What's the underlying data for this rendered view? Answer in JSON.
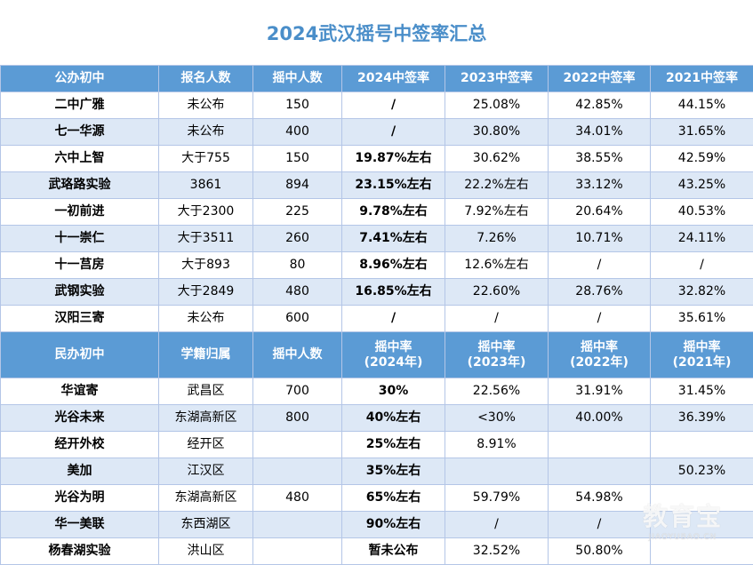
{
  "title": "2024武汉摇号中签率汇总",
  "colors": {
    "header_bg": "#5b9bd5",
    "title": "#4a8ec9",
    "stripe": "#dde8f6"
  },
  "public_header": [
    "公办初中",
    "报名人数",
    "摇中人数",
    "2024中签率",
    "2023中签率",
    "2022中签率",
    "2021中签率"
  ],
  "public_rows": [
    [
      "二中广雅",
      "未公布",
      "150",
      "/",
      "25.08%",
      "42.85%",
      "44.15%"
    ],
    [
      "七一华源",
      "未公布",
      "400",
      "/",
      "30.80%",
      "34.01%",
      "31.65%"
    ],
    [
      "六中上智",
      "大于755",
      "150",
      "19.87%左右",
      "30.62%",
      "38.55%",
      "42.59%"
    ],
    [
      "武珞路实验",
      "3861",
      "894",
      "23.15%左右",
      "22.2%左右",
      "33.12%",
      "43.25%"
    ],
    [
      "一初前进",
      "大于2300",
      "225",
      "9.78%左右",
      "7.92%左右",
      "20.64%",
      "40.53%"
    ],
    [
      "十一崇仁",
      "大于3511",
      "260",
      "7.41%左右",
      "7.26%",
      "10.71%",
      "24.11%"
    ],
    [
      "十一莒房",
      "大于893",
      "80",
      "8.96%左右",
      "12.6%左右",
      "/",
      "/"
    ],
    [
      "武钢实验",
      "大于2849",
      "480",
      "16.85%左右",
      "22.60%",
      "28.76%",
      "32.82%"
    ],
    [
      "汉阳三寄",
      "未公布",
      "600",
      "/",
      "/",
      "/",
      "35.61%"
    ]
  ],
  "private_header": [
    [
      "民办初中",
      ""
    ],
    [
      "学籍归属",
      ""
    ],
    [
      "摇中人数",
      ""
    ],
    [
      "摇中率",
      "(2024年)"
    ],
    [
      "摇中率",
      "(2023年)"
    ],
    [
      "摇中率",
      "(2022年)"
    ],
    [
      "摇中率",
      "(2021年)"
    ]
  ],
  "private_rows": [
    [
      "华谊寄",
      "武昌区",
      "700",
      "30%",
      "22.56%",
      "31.91%",
      "31.45%"
    ],
    [
      "光谷未来",
      "东湖高新区",
      "800",
      "40%左右",
      "<30%",
      "40.00%",
      "36.39%"
    ],
    [
      "经开外校",
      "经开区",
      "",
      "25%左右",
      "8.91%",
      "",
      ""
    ],
    [
      "美加",
      "江汉区",
      "",
      "35%左右",
      "",
      "",
      "50.23%"
    ],
    [
      "光谷为明",
      "东湖高新区",
      "480",
      "65%左右",
      "59.79%",
      "54.98%",
      ""
    ],
    [
      "华一美联",
      "东西湖区",
      "",
      "90%左右",
      "/",
      "/",
      ""
    ],
    [
      "杨春湖实验",
      "洪山区",
      "",
      "暂未公布",
      "32.52%",
      "50.80%",
      ""
    ]
  ],
  "watermark": {
    "main": "教育宝",
    "sub": "JIAOYUBAO.CN"
  }
}
